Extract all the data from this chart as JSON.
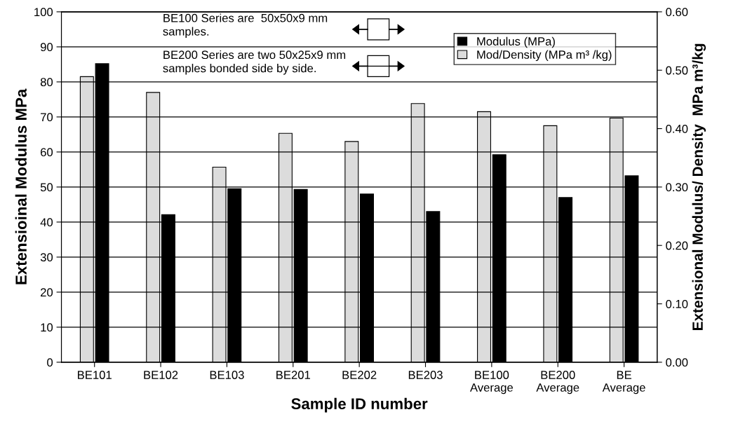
{
  "chart_data": {
    "type": "bar",
    "xlabel": "Sample ID number",
    "ylabel": "Extensioinal Modulus MPa",
    "y2label": "Extensional Modulus/ Density  MPa m³/kg",
    "categories": [
      "BE101",
      "BE102",
      "BE103",
      "BE201",
      "BE202",
      "BE203",
      "BE100\nAverage",
      "BE200\nAverage",
      "BE\nAverage"
    ],
    "series": [
      {
        "name": "Mod/Density (MPa m³ /kg)",
        "color": "#dcdcdc",
        "axis": "y2",
        "values": [
          0.489,
          0.462,
          0.334,
          0.392,
          0.378,
          0.443,
          0.429,
          0.405,
          0.418
        ]
      },
      {
        "name": "Modulus (MPa)",
        "color": "#000000",
        "axis": "y",
        "values": [
          85.2,
          42.1,
          49.5,
          49.3,
          48.0,
          43.0,
          59.2,
          47.0,
          53.2
        ]
      }
    ],
    "ylim": [
      0,
      100
    ],
    "yticks": [
      0,
      10,
      20,
      30,
      40,
      50,
      60,
      70,
      80,
      90,
      100
    ],
    "y2lim": [
      0,
      0.6
    ],
    "y2ticks": [
      {
        "value": 0,
        "label": "0.00"
      },
      {
        "value": 0.1,
        "label": "0.10"
      },
      {
        "value": 0.2,
        "label": "0.20"
      },
      {
        "value": 0.3,
        "label": "0.30"
      },
      {
        "value": 0.4,
        "label": "0.40"
      },
      {
        "value": 0.5,
        "label": "0.50"
      },
      {
        "value": 0.6,
        "label": "0.60"
      }
    ],
    "grid": "y",
    "legend": "top right",
    "annotations": [
      "BE100 Series are  50x50x9 mm\nsamples.",
      "BE200 Series are two 50x25x9 mm\nsamples bonded side by side."
    ]
  }
}
